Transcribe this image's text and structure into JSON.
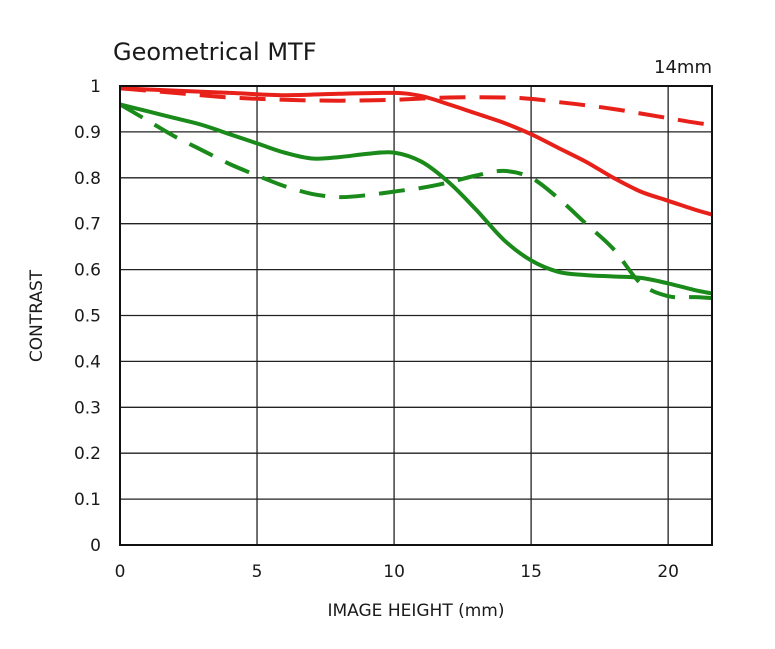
{
  "chart_data": {
    "type": "line",
    "title": "Geometrical MTF",
    "focal_length": "14mm",
    "xlabel": "IMAGE HEIGHT (mm)",
    "ylabel": "CONTRAST",
    "xlim": [
      0,
      21.6
    ],
    "ylim": [
      0,
      1
    ],
    "xticks": [
      0,
      5,
      10,
      15,
      20
    ],
    "xtick_labels": [
      "0",
      "5",
      "10",
      "15",
      "20"
    ],
    "yticks": [
      0,
      0.1,
      0.2,
      0.3,
      0.4,
      0.5,
      0.6,
      0.7,
      0.8,
      0.9,
      1
    ],
    "ytick_labels": [
      "0",
      "0.1",
      "0.2",
      "0.3",
      "0.4",
      "0.5",
      "0.6",
      "0.7",
      "0.8",
      "0.9",
      "1"
    ],
    "grid": true,
    "series": [
      {
        "color": "#e8201a",
        "style": "solid",
        "x": [
          0,
          2,
          4,
          6,
          8,
          10,
          11,
          12,
          13,
          14,
          15,
          16,
          17,
          18,
          19,
          20,
          21,
          21.6
        ],
        "y": [
          0.995,
          0.99,
          0.985,
          0.98,
          0.983,
          0.985,
          0.978,
          0.96,
          0.94,
          0.92,
          0.895,
          0.865,
          0.835,
          0.8,
          0.77,
          0.75,
          0.73,
          0.72
        ]
      },
      {
        "color": "#e8201a",
        "style": "dashed",
        "x": [
          0,
          2,
          4,
          6,
          8,
          10,
          12,
          14,
          15,
          16,
          17,
          18,
          19,
          20,
          21,
          21.6
        ],
        "y": [
          0.995,
          0.985,
          0.975,
          0.97,
          0.968,
          0.97,
          0.975,
          0.975,
          0.972,
          0.965,
          0.958,
          0.95,
          0.94,
          0.93,
          0.92,
          0.915
        ]
      },
      {
        "color": "#1a8a1a",
        "style": "solid",
        "x": [
          0,
          1,
          2,
          3,
          4,
          5,
          6,
          7,
          8,
          9,
          10,
          11,
          12,
          13,
          14,
          15,
          16,
          17,
          18,
          19,
          20,
          21,
          21.6
        ],
        "y": [
          0.96,
          0.945,
          0.93,
          0.915,
          0.895,
          0.875,
          0.855,
          0.842,
          0.845,
          0.852,
          0.855,
          0.835,
          0.79,
          0.73,
          0.665,
          0.62,
          0.595,
          0.588,
          0.585,
          0.582,
          0.57,
          0.555,
          0.548
        ]
      },
      {
        "color": "#1a8a1a",
        "style": "dashed",
        "x": [
          0,
          1,
          2,
          3,
          4,
          5,
          6,
          7,
          8,
          9,
          10,
          11,
          12,
          13,
          14,
          15,
          16,
          17,
          18,
          19,
          20,
          21,
          21.6
        ],
        "y": [
          0.96,
          0.925,
          0.89,
          0.86,
          0.83,
          0.805,
          0.782,
          0.765,
          0.758,
          0.762,
          0.77,
          0.778,
          0.79,
          0.805,
          0.815,
          0.8,
          0.755,
          0.7,
          0.645,
          0.57,
          0.542,
          0.54,
          0.538
        ]
      }
    ]
  }
}
